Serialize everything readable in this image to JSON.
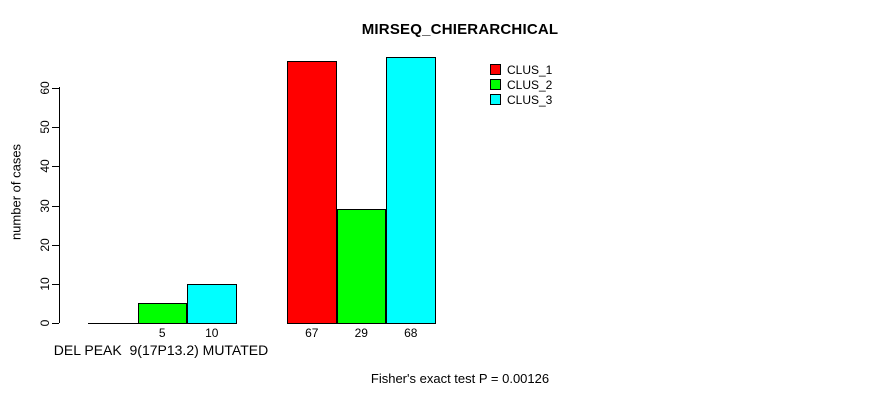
{
  "chart_data": {
    "type": "bar",
    "title": "MIRSEQ_CHIERARCHICAL",
    "ylabel": "number of cases",
    "xlabel": "DEL PEAK  9(17P13.2) MUTATED",
    "annotation": "Fisher's exact test P = 0.00126",
    "ylim": [
      0,
      60
    ],
    "yticks": [
      0,
      10,
      20,
      30,
      40,
      50,
      60
    ],
    "grid": false,
    "legend_position": "top-right",
    "series": [
      {
        "name": "CLUS_1",
        "color": "#ff0000",
        "values": [
          0,
          67
        ]
      },
      {
        "name": "CLUS_2",
        "color": "#00ff00",
        "values": [
          5,
          29
        ]
      },
      {
        "name": "CLUS_3",
        "color": "#00ffff",
        "values": [
          10,
          68
        ]
      }
    ],
    "groups": [
      {
        "bar_labels": [
          "",
          "5",
          "10"
        ]
      },
      {
        "bar_labels": [
          "67",
          "29",
          "68"
        ]
      }
    ],
    "colors": {
      "background": "#ffffff",
      "axis": "#000000",
      "text": "#000000"
    }
  }
}
